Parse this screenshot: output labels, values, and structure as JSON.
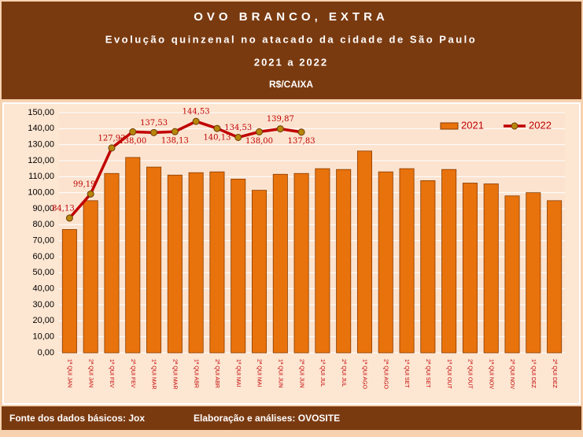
{
  "chart_data": {
    "type": "bar",
    "title": "OVO BRANCO, EXTRA",
    "subtitle": "Evolução quinzenal no atacado da cidade de São Paulo",
    "period": "2021 a 2022",
    "unit": "R$/CAIXA",
    "source": "Fonte dos dados básicos: Jox",
    "credits": "Elaboração e análises: OVOSITE",
    "categories": [
      "1ª QUI JAN",
      "2ª QUI JAN",
      "1ª QUI FEV",
      "2ª QUI FEV",
      "1ª QUI MAR",
      "2ª QUI MAR",
      "1ª QUI ABR",
      "2ª QUI ABR",
      "1ª QUI MAI",
      "2ª QUI MAI",
      "1ª QUI JUN",
      "2ª QUI JUN",
      "1ª QUI JUL",
      "2ª QUI JUL",
      "1ª QUI AGO",
      "2ª QUI AGO",
      "1ª QUI SET",
      "2ª QUI SET",
      "1ª QUI OUT",
      "2ª QUI OUT",
      "1ª QUI NOV",
      "2ª QUI NOV",
      "1ª QUI DEZ",
      "2ª QUI DEZ"
    ],
    "series": [
      {
        "name": "2021",
        "type": "bar",
        "color": "#e8720c",
        "values": [
          77,
          95,
          112,
          122,
          116,
          111,
          112.5,
          113,
          108.5,
          101.5,
          111.5,
          112,
          115,
          114.5,
          126,
          113,
          115,
          107.5,
          114.5,
          106,
          105.5,
          98,
          100,
          95
        ]
      },
      {
        "name": "2022",
        "type": "line",
        "color": "#c00000",
        "values": [
          84.13,
          99.19,
          127.93,
          138.0,
          137.53,
          138.13,
          144.53,
          140.13,
          134.53,
          138.0,
          139.87,
          137.83,
          null,
          null,
          null,
          null,
          null,
          null,
          null,
          null,
          null,
          null,
          null,
          null
        ],
        "value_labels": [
          "84,13",
          "99,19",
          "127,93",
          "138,00",
          "137,53",
          "138,13",
          "144,53",
          "140,13",
          "134,53",
          "138,00",
          "139,87",
          "137,83",
          null,
          null,
          null,
          null,
          null,
          null,
          null,
          null,
          null,
          null,
          null,
          null
        ]
      }
    ],
    "ylim": [
      0,
      150
    ],
    "yticks": [
      {
        "value": 0,
        "label": "0,00"
      },
      {
        "value": 10,
        "label": "10,00"
      },
      {
        "value": 20,
        "label": "20,00"
      },
      {
        "value": 30,
        "label": "30,00"
      },
      {
        "value": 40,
        "label": "40,00"
      },
      {
        "value": 50,
        "label": "50,00"
      },
      {
        "value": 60,
        "label": "60,00"
      },
      {
        "value": 70,
        "label": "70,00"
      },
      {
        "value": 80,
        "label": "80,00"
      },
      {
        "value": 90,
        "label": "90,00"
      },
      {
        "value": 100,
        "label": "100,00"
      },
      {
        "value": 110,
        "label": "110,00"
      },
      {
        "value": 120,
        "label": "120,00"
      },
      {
        "value": 130,
        "label": "130,00"
      },
      {
        "value": 140,
        "label": "140,00"
      },
      {
        "value": 150,
        "label": "150,00"
      }
    ],
    "grid": true,
    "legend": "top-right"
  }
}
